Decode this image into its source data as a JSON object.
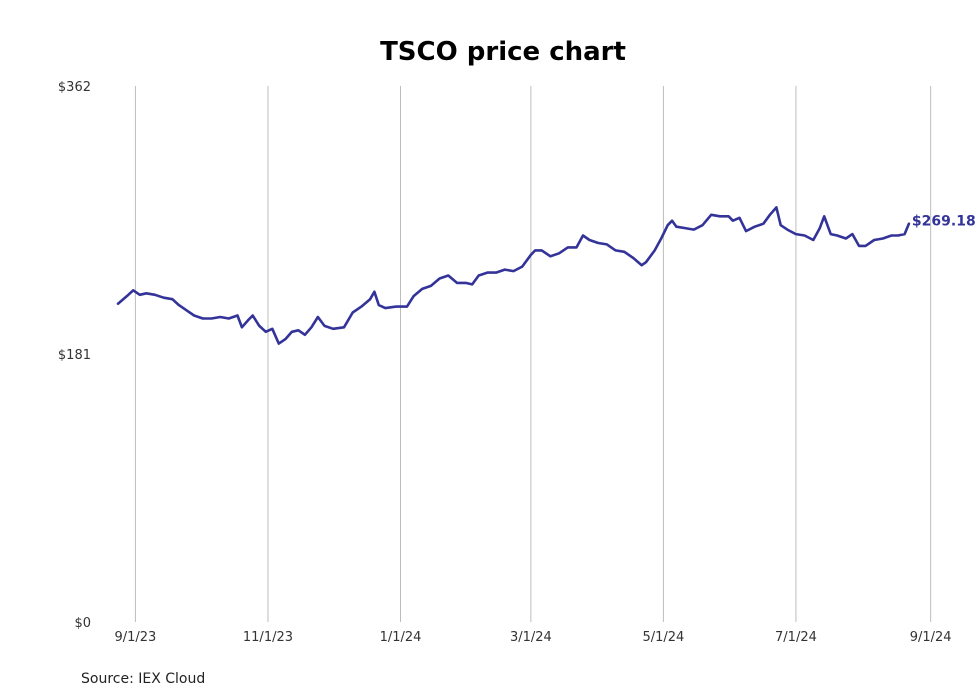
{
  "chart_data": {
    "type": "line",
    "title": "TSCO price chart",
    "xlabel": "",
    "ylabel": "",
    "y_ticks": [
      {
        "value": 0,
        "label": "$0"
      },
      {
        "value": 181,
        "label": "$181"
      },
      {
        "value": 362,
        "label": "$362"
      }
    ],
    "ylim": [
      0,
      362
    ],
    "x_ticks": [
      {
        "date": "2023-09-01",
        "label": "9/1/23"
      },
      {
        "date": "2023-11-01",
        "label": "11/1/23"
      },
      {
        "date": "2024-01-01",
        "label": "1/1/24"
      },
      {
        "date": "2024-03-01",
        "label": "3/1/24"
      },
      {
        "date": "2024-05-01",
        "label": "5/1/24"
      },
      {
        "date": "2024-07-01",
        "label": "7/1/24"
      },
      {
        "date": "2024-09-01",
        "label": "9/1/24"
      }
    ],
    "xlim": [
      "2023-08-18",
      "2024-09-03"
    ],
    "grid": "vertical",
    "series": [
      {
        "color": "#333399",
        "points": [
          [
            "2023-08-24",
            215
          ],
          [
            "2023-08-28",
            220
          ],
          [
            "2023-08-31",
            224
          ],
          [
            "2023-09-03",
            221
          ],
          [
            "2023-09-06",
            222
          ],
          [
            "2023-09-10",
            221
          ],
          [
            "2023-09-14",
            219
          ],
          [
            "2023-09-18",
            218
          ],
          [
            "2023-09-21",
            214
          ],
          [
            "2023-09-25",
            210
          ],
          [
            "2023-09-28",
            207
          ],
          [
            "2023-10-02",
            205
          ],
          [
            "2023-10-06",
            205
          ],
          [
            "2023-10-10",
            206
          ],
          [
            "2023-10-14",
            205
          ],
          [
            "2023-10-18",
            207
          ],
          [
            "2023-10-20",
            199
          ],
          [
            "2023-10-23",
            204
          ],
          [
            "2023-10-25",
            207
          ],
          [
            "2023-10-28",
            200
          ],
          [
            "2023-10-31",
            196
          ],
          [
            "2023-11-03",
            198
          ],
          [
            "2023-11-06",
            188
          ],
          [
            "2023-11-09",
            191
          ],
          [
            "2023-11-12",
            196
          ],
          [
            "2023-11-15",
            197
          ],
          [
            "2023-11-18",
            194
          ],
          [
            "2023-11-21",
            199
          ],
          [
            "2023-11-24",
            206
          ],
          [
            "2023-11-27",
            200
          ],
          [
            "2023-12-01",
            198
          ],
          [
            "2023-12-06",
            199
          ],
          [
            "2023-12-10",
            209
          ],
          [
            "2023-12-14",
            213
          ],
          [
            "2023-12-18",
            218
          ],
          [
            "2023-12-20",
            223
          ],
          [
            "2023-12-22",
            214
          ],
          [
            "2023-12-25",
            212
          ],
          [
            "2023-12-30",
            213
          ],
          [
            "2024-01-04",
            213
          ],
          [
            "2024-01-07",
            220
          ],
          [
            "2024-01-11",
            225
          ],
          [
            "2024-01-15",
            227
          ],
          [
            "2024-01-19",
            232
          ],
          [
            "2024-01-23",
            234
          ],
          [
            "2024-01-27",
            229
          ],
          [
            "2024-01-31",
            229
          ],
          [
            "2024-02-03",
            228
          ],
          [
            "2024-02-06",
            234
          ],
          [
            "2024-02-10",
            236
          ],
          [
            "2024-02-14",
            236
          ],
          [
            "2024-02-18",
            238
          ],
          [
            "2024-02-22",
            237
          ],
          [
            "2024-02-26",
            240
          ],
          [
            "2024-03-01",
            248
          ],
          [
            "2024-03-03",
            251
          ],
          [
            "2024-03-06",
            251
          ],
          [
            "2024-03-10",
            247
          ],
          [
            "2024-03-14",
            249
          ],
          [
            "2024-03-18",
            253
          ],
          [
            "2024-03-22",
            253
          ],
          [
            "2024-03-25",
            261
          ],
          [
            "2024-03-28",
            258
          ],
          [
            "2024-04-01",
            256
          ],
          [
            "2024-04-05",
            255
          ],
          [
            "2024-04-09",
            251
          ],
          [
            "2024-04-13",
            250
          ],
          [
            "2024-04-17",
            246
          ],
          [
            "2024-04-21",
            241
          ],
          [
            "2024-04-23",
            243
          ],
          [
            "2024-04-27",
            251
          ],
          [
            "2024-04-30",
            259
          ],
          [
            "2024-05-03",
            268
          ],
          [
            "2024-05-05",
            271
          ],
          [
            "2024-05-07",
            267
          ],
          [
            "2024-05-11",
            266
          ],
          [
            "2024-05-15",
            265
          ],
          [
            "2024-05-19",
            268
          ],
          [
            "2024-05-23",
            275
          ],
          [
            "2024-05-27",
            274
          ],
          [
            "2024-05-31",
            274
          ],
          [
            "2024-06-02",
            271
          ],
          [
            "2024-06-05",
            273
          ],
          [
            "2024-06-08",
            264
          ],
          [
            "2024-06-12",
            267
          ],
          [
            "2024-06-16",
            269
          ],
          [
            "2024-06-19",
            275
          ],
          [
            "2024-06-22",
            280
          ],
          [
            "2024-06-24",
            268
          ],
          [
            "2024-06-27",
            265
          ],
          [
            "2024-07-01",
            262
          ],
          [
            "2024-07-05",
            261
          ],
          [
            "2024-07-09",
            258
          ],
          [
            "2024-07-12",
            266
          ],
          [
            "2024-07-14",
            274
          ],
          [
            "2024-07-17",
            262
          ],
          [
            "2024-07-20",
            261
          ],
          [
            "2024-07-24",
            259
          ],
          [
            "2024-07-27",
            262
          ],
          [
            "2024-07-30",
            254
          ],
          [
            "2024-08-02",
            254
          ],
          [
            "2024-08-06",
            258
          ],
          [
            "2024-08-10",
            259
          ],
          [
            "2024-08-14",
            261
          ],
          [
            "2024-08-17",
            261
          ],
          [
            "2024-08-20",
            262
          ],
          [
            "2024-08-22",
            269
          ]
        ]
      }
    ],
    "last_value_label": "$269.18",
    "source": "Source: IEX Cloud"
  }
}
